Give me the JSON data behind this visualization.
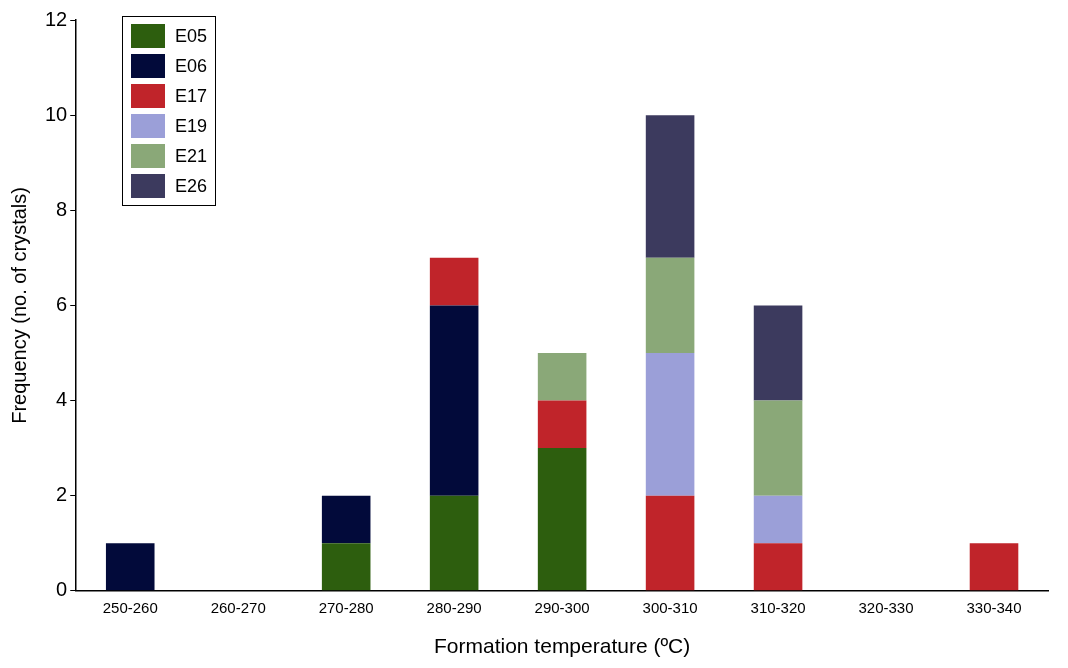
{
  "chart_data": {
    "type": "bar",
    "stacked": true,
    "xlabel": "Formation temperature (ºC)",
    "ylabel": "Frequency (no. of crystals)",
    "categories": [
      "250-260",
      "260-270",
      "270-280",
      "280-290",
      "290-300",
      "300-310",
      "310-320",
      "320-330",
      "330-340"
    ],
    "series": [
      {
        "name": "E05",
        "color": "#2d5e0e",
        "values": [
          0,
          0,
          1,
          2,
          3,
          0,
          0,
          0,
          0
        ]
      },
      {
        "name": "E06",
        "color": "#020a3a",
        "values": [
          1,
          0,
          1,
          4,
          0,
          0,
          0,
          0,
          0
        ]
      },
      {
        "name": "E17",
        "color": "#c0242a",
        "values": [
          0,
          0,
          0,
          1,
          1,
          2,
          1,
          0,
          1
        ]
      },
      {
        "name": "E19",
        "color": "#9b9fd8",
        "values": [
          0,
          0,
          0,
          0,
          0,
          3,
          1,
          0,
          0
        ]
      },
      {
        "name": "E21",
        "color": "#8aa878",
        "values": [
          0,
          0,
          0,
          0,
          1,
          2,
          2,
          0,
          0
        ]
      },
      {
        "name": "E26",
        "color": "#3c3a5e",
        "values": [
          0,
          0,
          0,
          0,
          0,
          3,
          2,
          0,
          0
        ]
      }
    ],
    "ylim": [
      0,
      12
    ],
    "yticks": [
      0,
      2,
      4,
      6,
      8,
      10,
      12
    ],
    "grid": false,
    "legend": "top left"
  }
}
